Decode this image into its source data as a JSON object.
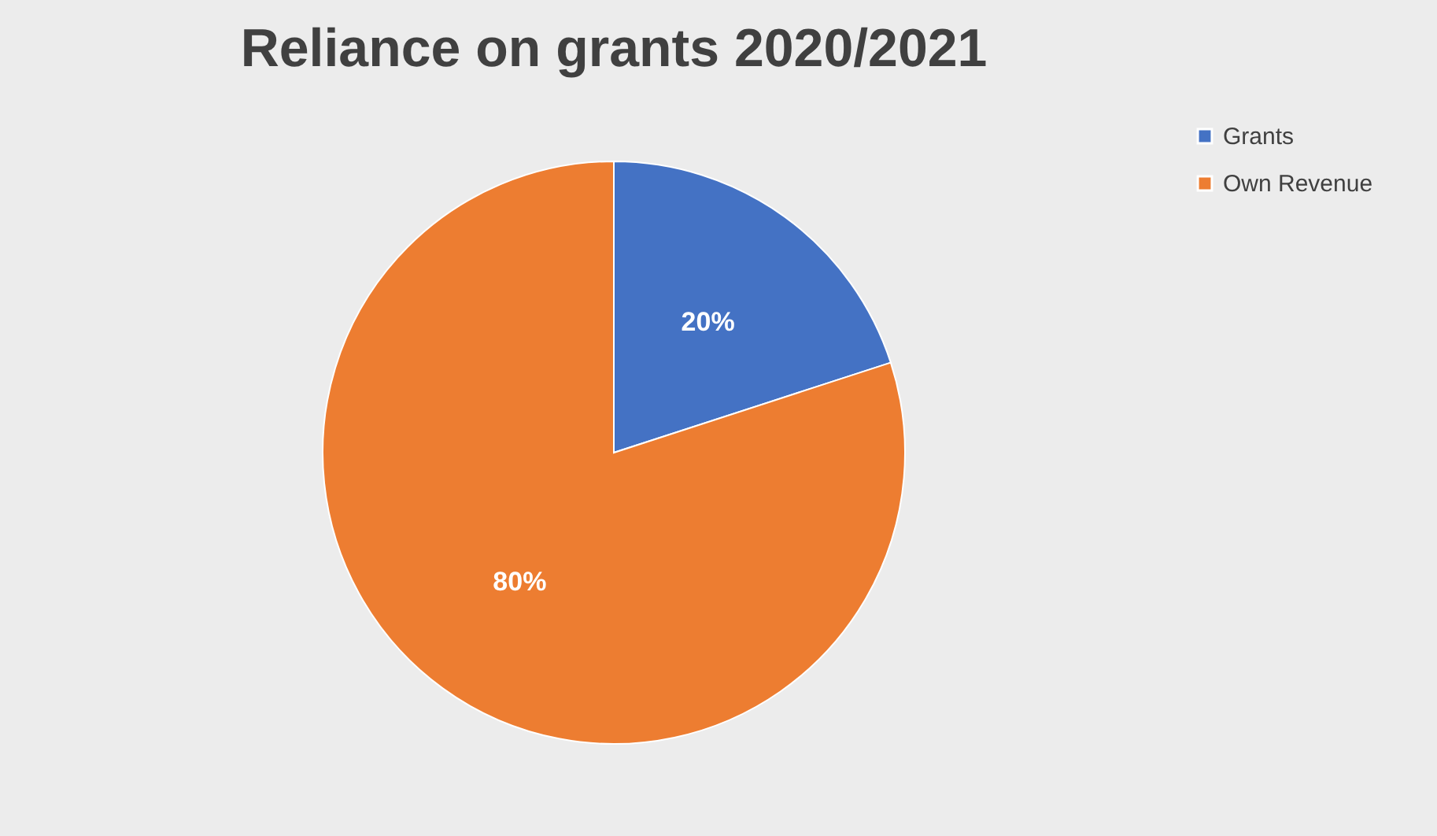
{
  "chart_data": {
    "type": "pie",
    "title": "Reliance on grants 2020/2021",
    "categories": [
      "Grants",
      "Own Revenue"
    ],
    "values": [
      20,
      80
    ],
    "colors": [
      "#4472c4",
      "#ed7d31"
    ],
    "value_labels": [
      "20%",
      "80%"
    ],
    "legend": "right"
  }
}
